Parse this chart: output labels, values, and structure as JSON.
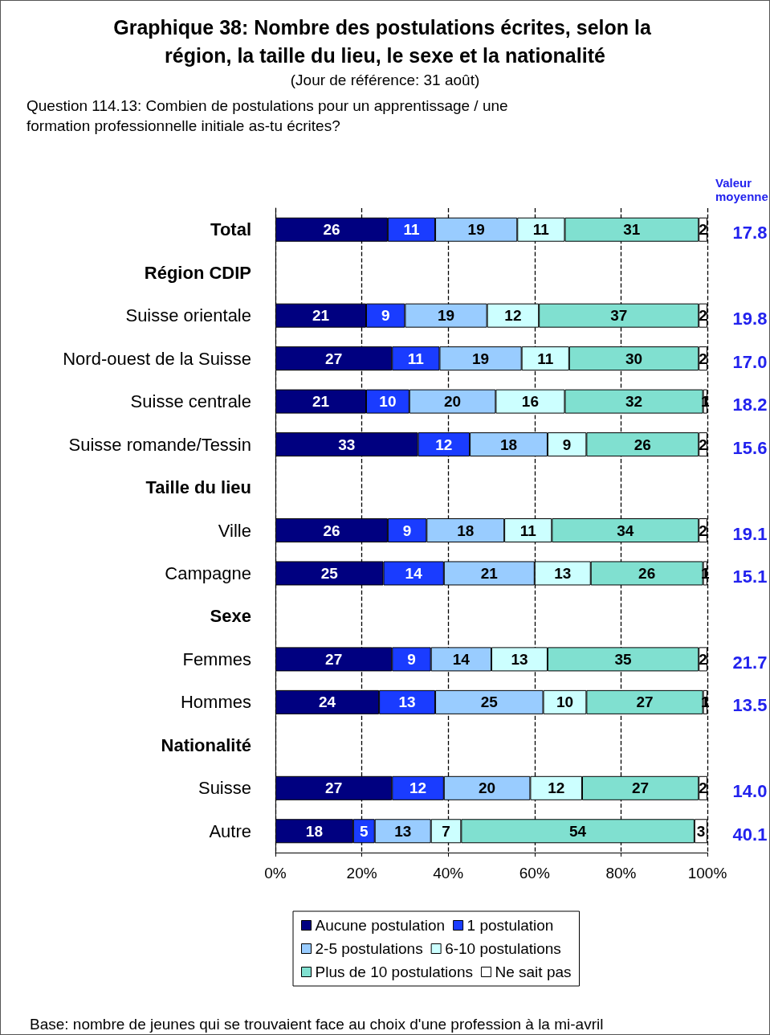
{
  "chart_data": {
    "type": "bar",
    "orientation": "horizontal",
    "stacked": true,
    "title": "Graphique 38: Nombre des postulations écrites, selon la région, la taille du lieu, le sexe et la nationalité",
    "subtitle": "(Jour de référence: 31 août)",
    "categories": [
      "Total",
      "Région CDIP",
      "Suisse orientale",
      "Nord-ouest de la Suisse",
      "Suisse centrale",
      "Suisse romande/Tessin",
      "Taille du lieu",
      "Ville",
      "Campagne",
      "Sexe",
      "Femmes",
      "Hommes",
      "Nationalité",
      "Suisse",
      "Autre"
    ],
    "series": [
      {
        "name": "Aucune postulation",
        "color": "#000080",
        "values": [
          26,
          null,
          21,
          27,
          21,
          33,
          null,
          26,
          25,
          null,
          27,
          24,
          null,
          27,
          18
        ]
      },
      {
        "name": "1 postulation",
        "color": "#1a3cff",
        "values": [
          11,
          null,
          9,
          11,
          10,
          12,
          null,
          9,
          14,
          null,
          9,
          13,
          null,
          12,
          5
        ]
      },
      {
        "name": "2-5 postulations",
        "color": "#99ccff",
        "values": [
          19,
          null,
          19,
          19,
          20,
          18,
          null,
          18,
          21,
          null,
          14,
          25,
          null,
          20,
          13
        ]
      },
      {
        "name": "6-10 postulations",
        "color": "#ccffff",
        "values": [
          11,
          null,
          12,
          11,
          16,
          9,
          null,
          11,
          13,
          null,
          13,
          10,
          null,
          12,
          7
        ]
      },
      {
        "name": "Plus de 10 postulations",
        "color": "#80e0d0",
        "values": [
          31,
          null,
          37,
          30,
          32,
          26,
          null,
          34,
          26,
          null,
          35,
          27,
          null,
          27,
          54
        ]
      },
      {
        "name": "Ne sait pas",
        "color": "#ffffff",
        "values": [
          2,
          null,
          2,
          2,
          1,
          2,
          null,
          2,
          1,
          null,
          2,
          1,
          null,
          2,
          3
        ]
      }
    ],
    "xlim": [
      0,
      100
    ],
    "xticks": [
      {
        "value": 0,
        "label": "0%"
      },
      {
        "value": 20,
        "label": "20%"
      },
      {
        "value": 40,
        "label": "40%"
      },
      {
        "value": 60,
        "label": "60%"
      },
      {
        "value": 80,
        "label": "80%"
      },
      {
        "value": 100,
        "label": "100%"
      }
    ],
    "grid": "x",
    "legend": "bottom",
    "data_labels": true,
    "annotations": [
      "Question 114.13: Combien de postulations pour un apprentissage / une formation professionnelle initiale as-tu écrites?",
      "Valeur moyenne",
      "Base: nombre de jeunes qui se trouvaient face au choix d'une profession à la mi-avril",
      "17.8",
      "19.8",
      "17.0",
      "18.2",
      "15.6",
      "19.1",
      "15.1",
      "21.7",
      "13.5",
      "14.0",
      "40.1"
    ]
  }
}
